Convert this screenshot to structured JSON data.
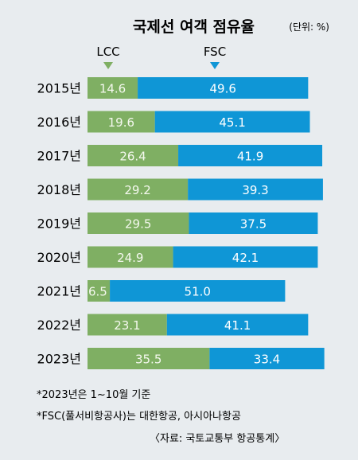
{
  "colors": {
    "lcc": "#7faf63",
    "fsc": "#0f96d6",
    "lcc_text": "#f4f8ee",
    "fsc_text": "#ffffff",
    "background": "#e8ecef"
  },
  "chart_data": {
    "type": "bar",
    "stacked": true,
    "orientation": "horizontal",
    "title": "국제선 여객 점유율",
    "unit": "(단위: %)",
    "categories": [
      "2015년",
      "2016년",
      "2017년",
      "2018년",
      "2019년",
      "2020년",
      "2021년",
      "2022년",
      "2023년"
    ],
    "series": [
      {
        "name": "LCC",
        "values": [
          14.6,
          19.6,
          26.4,
          29.2,
          29.5,
          24.9,
          6.5,
          23.1,
          35.5
        ]
      },
      {
        "name": "FSC",
        "values": [
          49.6,
          45.1,
          41.9,
          39.3,
          37.5,
          42.1,
          51.0,
          41.1,
          33.4
        ]
      }
    ],
    "value_labels": [
      [
        "14.6",
        "49.6"
      ],
      [
        "19.6",
        "45.1"
      ],
      [
        "26.4",
        "41.9"
      ],
      [
        "29.2",
        "39.3"
      ],
      [
        "29.5",
        "37.5"
      ],
      [
        "24.9",
        "42.1"
      ],
      [
        "6.5",
        "51.0"
      ],
      [
        "23.1",
        "41.1"
      ],
      [
        "35.5",
        "33.4"
      ]
    ],
    "legend": [
      "LCC",
      "FSC"
    ],
    "legend_placement": "top"
  },
  "notes": [
    "*2023년은 1~10월 기준",
    "*FSC(풀서비항공사)는 대한항공, 아시아나항공",
    "〈자료: 국토교통부 항공통계〉"
  ]
}
